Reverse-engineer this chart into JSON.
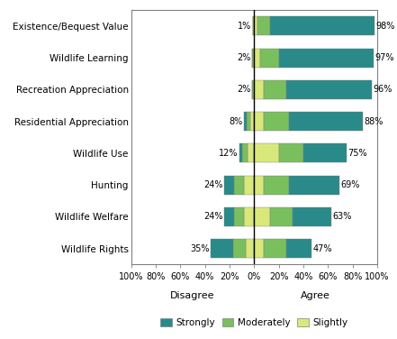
{
  "categories": [
    "Existence/Bequest Value",
    "Wildlife Learning",
    "Recreation Appreciation",
    "Residential Appreciation",
    "Wildlife Use",
    "Hunting",
    "Wildlife Welfare",
    "Wildlife Rights"
  ],
  "disagree_labels": [
    "1%",
    "2%",
    "2%",
    "8%",
    "12%",
    "24%",
    "24%",
    "35%"
  ],
  "agree_labels": [
    "98%",
    "97%",
    "96%",
    "88%",
    "75%",
    "69%",
    "63%",
    "47%"
  ],
  "dis_strong": [
    0,
    0,
    0,
    2,
    2,
    8,
    8,
    18
  ],
  "dis_mod": [
    0,
    1,
    1,
    3,
    5,
    8,
    8,
    10
  ],
  "dis_slight": [
    1,
    1,
    1,
    3,
    5,
    8,
    8,
    7
  ],
  "ag_slight": [
    3,
    5,
    8,
    8,
    20,
    8,
    13,
    8
  ],
  "ag_mod": [
    10,
    15,
    18,
    20,
    20,
    20,
    18,
    18
  ],
  "ag_strong": [
    85,
    77,
    70,
    60,
    35,
    41,
    32,
    21
  ],
  "color_strongly": "#2a8a8a",
  "color_moderately": "#7abf5e",
  "color_slightly": "#d9e87a",
  "xlim": [
    -100,
    100
  ],
  "xticks": [
    -100,
    -80,
    -60,
    -40,
    -20,
    0,
    20,
    40,
    60,
    80,
    100
  ],
  "xtick_labels": [
    "100%",
    "80%",
    "60%",
    "40%",
    "20%",
    "0%",
    "20%",
    "40%",
    "60%",
    "80%",
    "100%"
  ],
  "xlabel_disagree": "Disagree",
  "xlabel_agree": "Agree",
  "background_color": "#ffffff",
  "bar_height": 0.6
}
